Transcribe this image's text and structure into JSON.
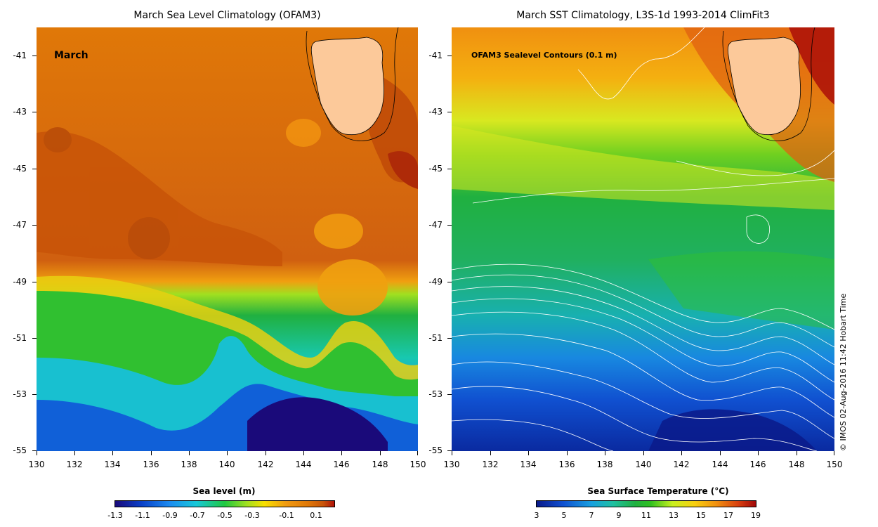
{
  "left_panel": {
    "title": "March Sea Level Climatology (OFAM3)",
    "month_label": "March",
    "colorbar_title": "Sea level (m)",
    "colorbar_ticks": [
      "-1.3",
      "-1.1",
      "-0.9",
      "-0.7",
      "-0.5",
      "-0.3",
      "-0.1",
      "0.1"
    ]
  },
  "right_panel": {
    "title": "March SST Climatology, L3S-1d 1993-2014 ClimFit3",
    "contour_label": "OFAM3 Sealevel Contours (0.1 m)",
    "colorbar_title": "Sea Surface Temperature (°C)",
    "colorbar_ticks": [
      "3",
      "5",
      "7",
      "9",
      "11",
      "13",
      "15",
      "17",
      "19"
    ]
  },
  "axes": {
    "y_ticks": [
      "-41",
      "-43",
      "-45",
      "-47",
      "-49",
      "-51",
      "-53",
      "-55"
    ],
    "x_ticks": [
      "130",
      "132",
      "134",
      "136",
      "138",
      "140",
      "142",
      "144",
      "146",
      "148",
      "150"
    ],
    "lon_range": [
      130,
      150
    ],
    "lat_range": [
      -40,
      -55
    ]
  },
  "credit": "© IMOS 02-Aug-2016 11:42 Hobart Time",
  "colors": {
    "land": "#fcc99a",
    "sl_ramp": [
      "#1a0a7a",
      "#0a40c8",
      "#1c8cf0",
      "#18c8d8",
      "#20c840",
      "#a0e020",
      "#f8e000",
      "#f09a10",
      "#e07808",
      "#c85408",
      "#b01008"
    ],
    "sst_ramp": [
      "#0a1a8a",
      "#1050d0",
      "#18a0e0",
      "#20c0a0",
      "#20b040",
      "#30c020",
      "#c8f020",
      "#f8d010",
      "#f09010",
      "#d84010",
      "#a00808"
    ]
  }
}
